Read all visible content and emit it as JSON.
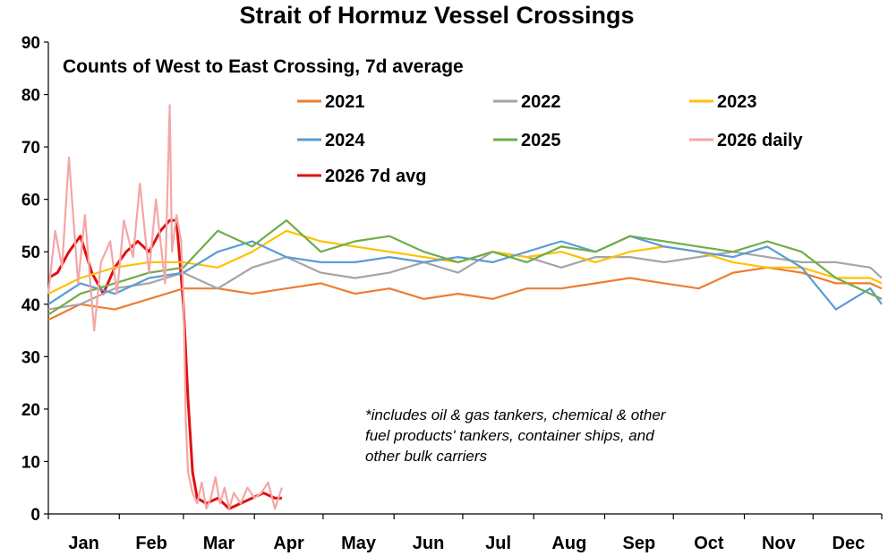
{
  "chart_data": {
    "type": "line",
    "title": "Strait of Hormuz Vessel Crossings",
    "subtitle": "Counts of West to East Crossing, 7d average",
    "note_lines": [
      "*includes oil & gas tankers, chemical & other",
      "fuel products' tankers, container ships, and",
      "other bulk carriers"
    ],
    "xlabel": "",
    "ylabel": "",
    "ylim": [
      0,
      90
    ],
    "yticks": [
      "0",
      "10",
      "20",
      "30",
      "40",
      "50",
      "60",
      "70",
      "80",
      "90"
    ],
    "xlim": [
      1,
      365
    ],
    "months": [
      "Jan",
      "Feb",
      "Mar",
      "Apr",
      "May",
      "Jun",
      "Jul",
      "Aug",
      "Sep",
      "Oct",
      "Nov",
      "Dec"
    ],
    "grid": false,
    "legend_position": "top",
    "series": [
      {
        "name": "2021",
        "color": "#ED7D31",
        "x": [
          1,
          15,
          30,
          45,
          60,
          75,
          90,
          105,
          120,
          135,
          150,
          165,
          180,
          195,
          210,
          225,
          240,
          255,
          270,
          285,
          300,
          315,
          330,
          345,
          360,
          365
        ],
        "y": [
          37,
          40,
          39,
          41,
          43,
          43,
          42,
          43,
          44,
          42,
          43,
          41,
          42,
          41,
          43,
          43,
          44,
          45,
          44,
          43,
          46,
          47,
          46,
          44,
          44,
          43
        ]
      },
      {
        "name": "2022",
        "color": "#A5A5A5",
        "x": [
          1,
          15,
          30,
          45,
          60,
          75,
          90,
          105,
          120,
          135,
          150,
          165,
          180,
          195,
          210,
          225,
          240,
          255,
          270,
          285,
          300,
          315,
          330,
          345,
          360,
          365
        ],
        "y": [
          39,
          40,
          43,
          44,
          46,
          43,
          47,
          49,
          46,
          45,
          46,
          48,
          46,
          50,
          49,
          47,
          49,
          49,
          48,
          49,
          50,
          49,
          48,
          48,
          47,
          45
        ]
      },
      {
        "name": "2023",
        "color": "#FFC000",
        "x": [
          1,
          15,
          30,
          45,
          60,
          75,
          90,
          105,
          120,
          135,
          150,
          165,
          180,
          195,
          210,
          225,
          240,
          255,
          270,
          285,
          300,
          315,
          330,
          345,
          360,
          365
        ],
        "y": [
          42,
          45,
          47,
          48,
          48,
          47,
          50,
          54,
          52,
          51,
          50,
          49,
          48,
          50,
          49,
          50,
          48,
          50,
          51,
          50,
          48,
          47,
          47,
          45,
          45,
          44
        ]
      },
      {
        "name": "2024",
        "color": "#5B9BD5",
        "x": [
          1,
          15,
          30,
          45,
          60,
          75,
          90,
          105,
          120,
          135,
          150,
          165,
          180,
          195,
          210,
          225,
          240,
          255,
          270,
          285,
          300,
          315,
          330,
          345,
          360,
          365
        ],
        "y": [
          40,
          44,
          42,
          45,
          46,
          50,
          52,
          49,
          48,
          48,
          49,
          48,
          49,
          48,
          50,
          52,
          50,
          53,
          51,
          50,
          49,
          51,
          47,
          39,
          43,
          40
        ]
      },
      {
        "name": "2025",
        "color": "#70AD47",
        "x": [
          1,
          15,
          30,
          45,
          60,
          75,
          90,
          105,
          120,
          135,
          150,
          165,
          180,
          195,
          210,
          225,
          240,
          255,
          270,
          285,
          300,
          315,
          330,
          345,
          360,
          365
        ],
        "y": [
          38,
          42,
          44,
          46,
          47,
          54,
          51,
          56,
          50,
          52,
          53,
          50,
          48,
          50,
          48,
          51,
          50,
          53,
          52,
          51,
          50,
          52,
          50,
          45,
          42,
          41
        ]
      },
      {
        "name": "2026 daily",
        "color": "#F4A6A6",
        "x": [
          1,
          4,
          7,
          10,
          14,
          17,
          21,
          24,
          28,
          31,
          34,
          38,
          41,
          45,
          48,
          52,
          54,
          55,
          57,
          59,
          60,
          61,
          62,
          64,
          66,
          68,
          70,
          72,
          74,
          76,
          78,
          80,
          82,
          85,
          88,
          91,
          94,
          97,
          100,
          103
        ],
        "y": [
          42,
          54,
          47,
          68,
          44,
          57,
          35,
          48,
          52,
          42,
          56,
          49,
          63,
          46,
          60,
          44,
          78,
          50,
          57,
          52,
          42,
          18,
          8,
          4,
          2,
          6,
          1,
          3,
          7,
          2,
          5,
          1,
          4,
          2,
          5,
          3,
          4,
          6,
          1,
          5
        ]
      },
      {
        "name": "2026 7d avg",
        "color": "#E01010",
        "x": [
          1,
          5,
          10,
          15,
          20,
          25,
          30,
          35,
          40,
          45,
          50,
          54,
          57,
          60,
          62,
          64,
          66,
          70,
          75,
          80,
          85,
          90,
          95,
          100,
          103
        ],
        "y": [
          45,
          46,
          50,
          53,
          46,
          42,
          47,
          50,
          52,
          50,
          54,
          56,
          56,
          40,
          22,
          8,
          3,
          2,
          3,
          1,
          2,
          3,
          4,
          3,
          3
        ]
      }
    ]
  }
}
